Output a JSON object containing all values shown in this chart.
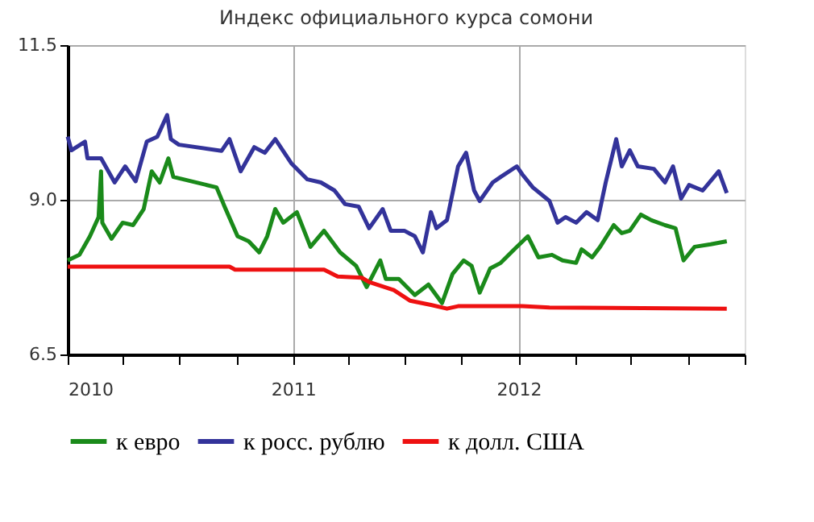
{
  "chart_data": {
    "type": "line",
    "title": "Индекс официального курса сомони",
    "ylim": [
      6.5,
      11.5
    ],
    "yticks": [
      {
        "value": 6.5,
        "label": "6.5"
      },
      {
        "value": 9,
        "label": "9.0"
      },
      {
        "value": 11.5,
        "label": "11.5"
      }
    ],
    "xlim": [
      "2010-01-01",
      "2013-01-01"
    ],
    "xticks": [
      {
        "value": "2010-01-01",
        "label": "2010"
      },
      {
        "value": "2010-04-01",
        "label": null
      },
      {
        "value": "2010-07-01",
        "label": null
      },
      {
        "value": "2010-10-01",
        "label": null
      },
      {
        "value": "2011-01-01",
        "label": "2011"
      },
      {
        "value": "2011-04-01",
        "label": null
      },
      {
        "value": "2011-07-01",
        "label": null
      },
      {
        "value": "2011-10-01",
        "label": null
      },
      {
        "value": "2012-01-01",
        "label": "2012"
      },
      {
        "value": "2012-04-01",
        "label": null
      },
      {
        "value": "2012-07-01",
        "label": null
      },
      {
        "value": "2012-10-01",
        "label": null
      },
      {
        "value": "2013-01-01",
        "label": null
      }
    ],
    "grid": true,
    "legend": "bottom",
    "line_style": "solid",
    "marker": "none",
    "series": [
      {
        "name": "к евро",
        "color": "#1a8a1a",
        "x": [
          "2010-01-01",
          "2010-01-20",
          "2010-02-06",
          "2010-02-20",
          "2010-02-24",
          "2010-02-26",
          "2010-03-13",
          "2010-03-31",
          "2010-04-17",
          "2010-05-04",
          "2010-05-17",
          "2010-05-30",
          "2010-06-13",
          "2010-06-21",
          "2010-08-30",
          "2010-09-12",
          "2010-10-03",
          "2010-10-21",
          "2010-11-07",
          "2010-11-20",
          "2010-12-03",
          "2010-12-16",
          "2011-01-07",
          "2011-01-29",
          "2011-02-20",
          "2011-03-18",
          "2011-04-13",
          "2011-04-30",
          "2011-05-22",
          "2011-05-31",
          "2011-06-21",
          "2011-07-17",
          "2011-08-08",
          "2011-08-30",
          "2011-09-16",
          "2011-10-04",
          "2011-10-17",
          "2011-10-30",
          "2011-11-16",
          "2011-12-03",
          "2011-12-25",
          "2012-01-16",
          "2012-02-02",
          "2012-02-24",
          "2012-03-12",
          "2012-04-03",
          "2012-04-12",
          "2012-04-29",
          "2012-05-12",
          "2012-06-03",
          "2012-06-16",
          "2012-06-29",
          "2012-07-17",
          "2012-08-03",
          "2012-08-25",
          "2012-09-11",
          "2012-09-24",
          "2012-10-12",
          "2012-11-07",
          "2012-12-03"
        ],
        "values": [
          8.02,
          8.11,
          8.41,
          8.72,
          9.46,
          8.63,
          8.37,
          8.63,
          8.59,
          8.85,
          9.46,
          9.28,
          9.67,
          9.37,
          9.2,
          8.89,
          8.41,
          8.33,
          8.15,
          8.41,
          8.85,
          8.63,
          8.8,
          8.24,
          8.5,
          8.15,
          7.93,
          7.59,
          8.02,
          7.72,
          7.72,
          7.46,
          7.63,
          7.33,
          7.8,
          8.02,
          7.93,
          7.5,
          7.89,
          7.98,
          8.2,
          8.41,
          8.07,
          8.11,
          8.02,
          7.98,
          8.2,
          8.07,
          8.24,
          8.59,
          8.46,
          8.5,
          8.76,
          8.67,
          8.59,
          8.54,
          8.02,
          8.24,
          8.28,
          8.33
        ]
      },
      {
        "name": "к росс. рублю",
        "color": "#33339a",
        "x": [
          "2010-01-01",
          "2010-01-07",
          "2010-01-29",
          "2010-02-02",
          "2010-02-24",
          "2010-03-18",
          "2010-04-04",
          "2010-04-21",
          "2010-05-09",
          "2010-05-26",
          "2010-06-11",
          "2010-06-17",
          "2010-06-30",
          "2010-09-07",
          "2010-09-20",
          "2010-10-08",
          "2010-10-30",
          "2010-11-16",
          "2010-12-03",
          "2010-12-29",
          "2011-01-24",
          "2011-02-15",
          "2011-03-09",
          "2011-03-26",
          "2011-04-17",
          "2011-05-04",
          "2011-05-26",
          "2011-06-08",
          "2011-06-30",
          "2011-07-17",
          "2011-07-30",
          "2011-08-12",
          "2011-08-21",
          "2011-09-07",
          "2011-09-25",
          "2011-10-08",
          "2011-10-21",
          "2011-10-30",
          "2011-11-20",
          "2011-12-03",
          "2011-12-29",
          "2012-01-07",
          "2012-01-24",
          "2012-02-20",
          "2012-03-04",
          "2012-03-17",
          "2012-04-03",
          "2012-04-20",
          "2012-05-08",
          "2012-05-21",
          "2012-06-07",
          "2012-06-16",
          "2012-06-29",
          "2012-07-12",
          "2012-08-07",
          "2012-08-25",
          "2012-09-07",
          "2012-09-20",
          "2012-10-03",
          "2012-10-25",
          "2012-11-20",
          "2012-12-03"
        ],
        "values": [
          10.02,
          9.8,
          9.94,
          9.67,
          9.67,
          9.28,
          9.54,
          9.3,
          9.94,
          10.02,
          10.37,
          9.98,
          9.89,
          9.79,
          9.98,
          9.46,
          9.85,
          9.76,
          9.98,
          9.59,
          9.33,
          9.28,
          9.15,
          8.93,
          8.89,
          8.54,
          8.85,
          8.5,
          8.5,
          8.41,
          8.15,
          8.8,
          8.54,
          8.67,
          9.54,
          9.76,
          9.15,
          8.98,
          9.28,
          9.37,
          9.54,
          9.41,
          9.2,
          8.98,
          8.63,
          8.72,
          8.63,
          8.8,
          8.67,
          9.28,
          9.98,
          9.54,
          9.8,
          9.54,
          9.5,
          9.28,
          9.54,
          9.02,
          9.24,
          9.15,
          9.46,
          9.11
        ]
      },
      {
        "name": "к долл. США",
        "color": "#ee1111",
        "x": [
          "2010-01-01",
          "2010-09-20",
          "2010-09-29",
          "2011-02-20",
          "2011-03-14",
          "2011-04-22",
          "2011-05-04",
          "2011-06-13",
          "2011-07-09",
          "2011-08-12",
          "2011-09-07",
          "2011-09-25",
          "2012-01-07",
          "2012-02-20",
          "2012-12-03"
        ],
        "values": [
          7.92,
          7.92,
          7.87,
          7.87,
          7.76,
          7.74,
          7.67,
          7.54,
          7.37,
          7.3,
          7.24,
          7.28,
          7.28,
          7.26,
          7.24
        ]
      }
    ]
  }
}
